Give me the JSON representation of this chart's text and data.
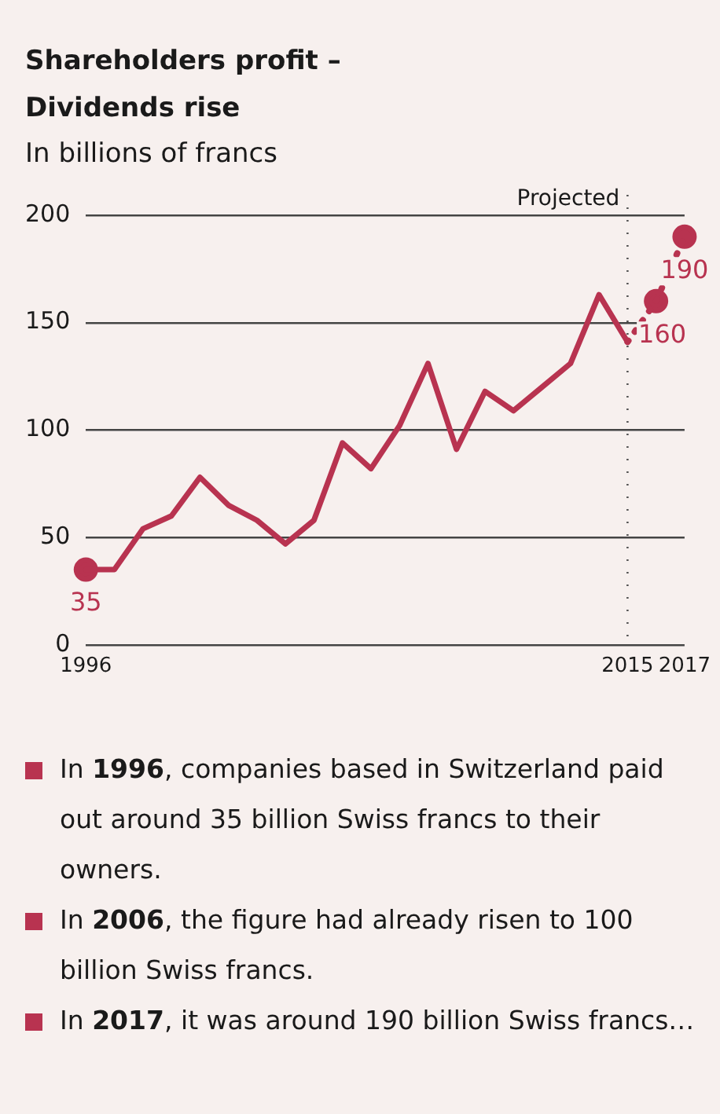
{
  "chart_data": {
    "type": "line",
    "title": "Shareholders profit –\nDividends rise",
    "subtitle": "In billions of francs",
    "categories": [
      "1996",
      null,
      null,
      null,
      null,
      null,
      null,
      null,
      null,
      null,
      null,
      null,
      null,
      null,
      null,
      null,
      null,
      null,
      null,
      "2015",
      null,
      "2017"
    ],
    "series": [
      {
        "color": "#b83350",
        "line_style": "solid",
        "marker": "none",
        "values": [
          35,
          35,
          54,
          60,
          78,
          65,
          58,
          47,
          58,
          94,
          82,
          102,
          131,
          91,
          118,
          109,
          120,
          131,
          163,
          141,
          null,
          null
        ]
      },
      {
        "color": "#b83350",
        "line_style": "dotted",
        "marker": "none",
        "values": [
          null,
          null,
          null,
          null,
          null,
          null,
          null,
          null,
          null,
          null,
          null,
          null,
          null,
          null,
          null,
          null,
          null,
          null,
          null,
          141,
          160,
          190
        ]
      },
      {
        "type": "scatter",
        "color": "#b83350",
        "values": [
          35,
          null,
          null,
          null,
          null,
          null,
          null,
          null,
          null,
          null,
          null,
          null,
          null,
          null,
          null,
          null,
          null,
          null,
          null,
          null,
          160,
          190
        ],
        "value_labels": [
          "35",
          null,
          null,
          null,
          null,
          null,
          null,
          null,
          null,
          null,
          null,
          null,
          null,
          null,
          null,
          null,
          null,
          null,
          null,
          null,
          "160",
          "190"
        ]
      }
    ],
    "ylim": [
      0,
      200
    ],
    "yticks": [
      0,
      50,
      100,
      150,
      200
    ],
    "grid": "y",
    "marker": "circle",
    "legend": false,
    "ref_lines": [
      {
        "axis": "x",
        "value": "2015",
        "label": "Projected",
        "line_style": "dotted",
        "color": "#555555"
      }
    ],
    "annotations": [
      "In 1996, companies based in Switzerland paid out around 35 billion Swiss francs to their owners.",
      "In 2006, the figure had already risen to 100 billion Swiss francs.",
      "In 2017, it was around 190 billion Swiss francs…"
    ]
  }
}
